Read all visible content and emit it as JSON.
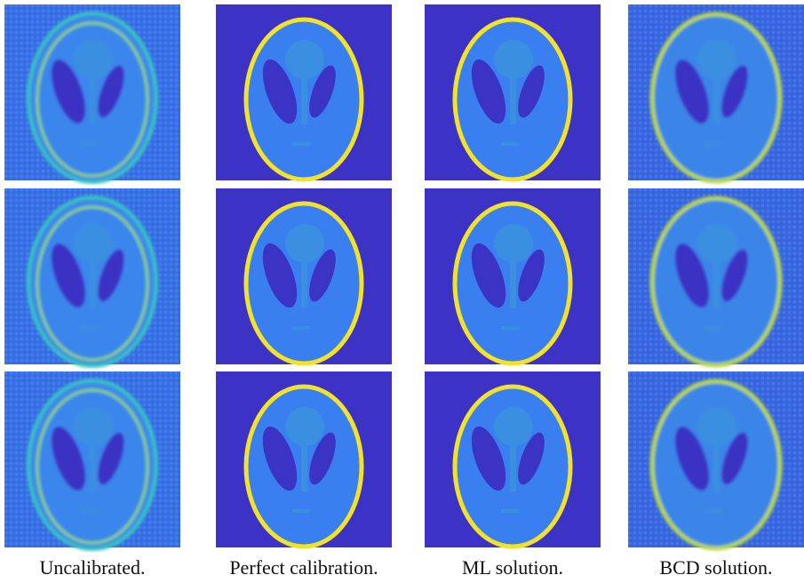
{
  "captions": [
    "Uncalibrated.",
    "Perfect calibration.",
    "ML solution.",
    "BCD solution."
  ]
}
